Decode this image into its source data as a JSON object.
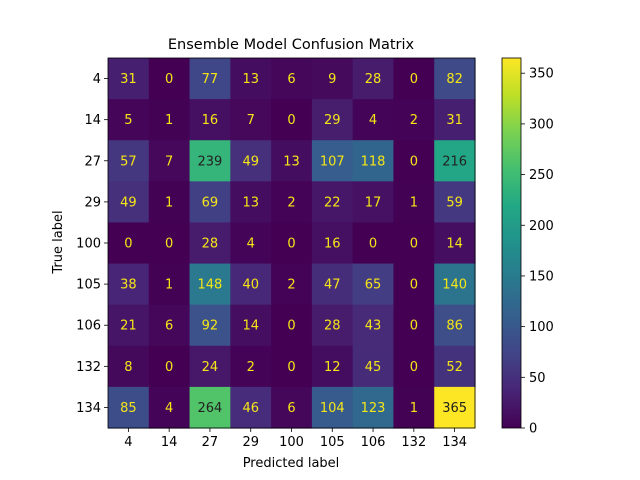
{
  "chart_data": {
    "type": "heatmap",
    "title": "Ensemble Model Confusion Matrix",
    "xlabel": "Predicted label",
    "ylabel": "True label",
    "x_categories": [
      "4",
      "14",
      "27",
      "29",
      "100",
      "105",
      "106",
      "132",
      "134"
    ],
    "y_categories": [
      "4",
      "14",
      "27",
      "29",
      "100",
      "105",
      "106",
      "132",
      "134"
    ],
    "values": [
      [
        31,
        0,
        77,
        13,
        6,
        9,
        28,
        0,
        82
      ],
      [
        5,
        1,
        16,
        7,
        0,
        29,
        4,
        2,
        31
      ],
      [
        57,
        7,
        239,
        49,
        13,
        107,
        118,
        0,
        216
      ],
      [
        49,
        1,
        69,
        13,
        2,
        22,
        17,
        1,
        59
      ],
      [
        0,
        0,
        28,
        4,
        0,
        16,
        0,
        0,
        14
      ],
      [
        38,
        1,
        148,
        40,
        2,
        47,
        65,
        0,
        140
      ],
      [
        21,
        6,
        92,
        14,
        0,
        28,
        43,
        0,
        86
      ],
      [
        8,
        0,
        24,
        2,
        0,
        12,
        45,
        0,
        52
      ],
      [
        85,
        4,
        264,
        46,
        6,
        104,
        123,
        1,
        365
      ]
    ],
    "colormap": "viridis",
    "vmin": 0,
    "vmax": 365,
    "colorbar_ticks": [
      0,
      50,
      100,
      150,
      200,
      250,
      300,
      350
    ],
    "light_text_color": "#f5e617",
    "dark_text_color": "#222222"
  }
}
